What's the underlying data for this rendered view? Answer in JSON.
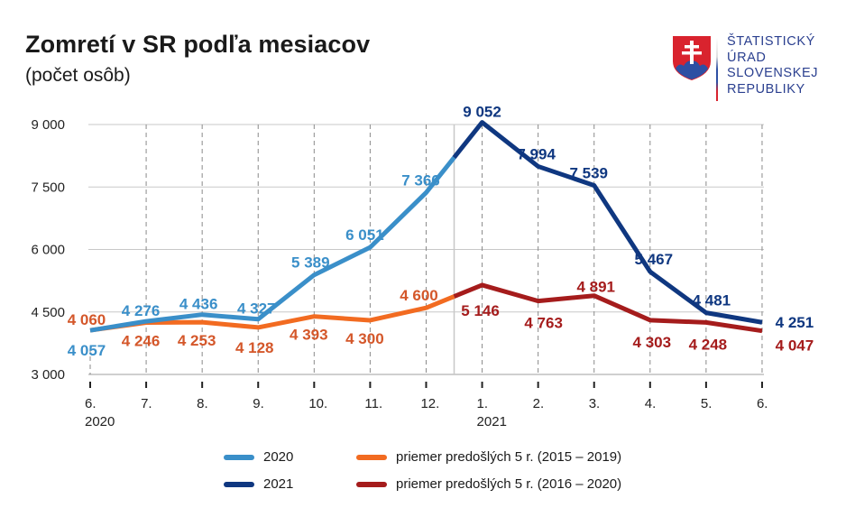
{
  "header": {
    "title": "Zomretí v SR podľa mesiacov",
    "subtitle": "(počet osôb)"
  },
  "logo": {
    "icon": "slovak-coat-of-arms-icon",
    "lines": [
      "ŠTATISTICKÝ",
      "ÚRAD",
      "SLOVENSKEJ",
      "REPUBLIKY"
    ],
    "text_color": "#2a3f8f"
  },
  "chart_data": {
    "type": "line",
    "title": "Zomretí v SR podľa mesiacov",
    "subtitle": "(počet osôb)",
    "xlabel": "",
    "ylabel": "",
    "ylim": [
      3000,
      9000
    ],
    "yticks": [
      3000,
      4500,
      6000,
      7500,
      9000
    ],
    "ytick_labels": [
      "3 000",
      "4 500",
      "6 000",
      "7 500",
      "9 000"
    ],
    "grid": true,
    "legend_position": "bottom",
    "categories": [
      "6.",
      "7.",
      "8.",
      "9.",
      "10.",
      "11.",
      "12.",
      "1.",
      "2.",
      "3.",
      "4.",
      "5.",
      "6."
    ],
    "year_labels": [
      {
        "index": 0,
        "label": "2020"
      },
      {
        "index": 7,
        "label": "2021"
      }
    ],
    "series": [
      {
        "name": "2020",
        "color": "#3a8fc9",
        "start_index": 0,
        "values": [
          4057,
          4276,
          4436,
          4327,
          5389,
          6051,
          7366
        ],
        "labels": [
          "4 057",
          "4 276",
          "4 436",
          "4 327",
          "5 389",
          "6 051",
          "7 366"
        ]
      },
      {
        "name": "2021",
        "color": "#0f3780",
        "start_index": 7,
        "values": [
          9052,
          7994,
          7539,
          5467,
          4481,
          4251
        ],
        "labels": [
          "9 052",
          "7 994",
          "7 539",
          "5 467",
          "4 481",
          "4 251"
        ]
      },
      {
        "name": "priemer predošlých 5 r. (2015 – 2019)",
        "color": "#f26b21",
        "label_color": "#d4572a",
        "start_index": 0,
        "values": [
          4060,
          4246,
          4253,
          4128,
          4393,
          4300,
          4600
        ],
        "labels": [
          "4 060",
          "4 246",
          "4 253",
          "4 128",
          "4 393",
          "4 300",
          "4 600"
        ]
      },
      {
        "name": "priemer predošlých 5 r. (2016 – 2020)",
        "color": "#a51c1c",
        "start_index": 7,
        "values": [
          5146,
          4763,
          4891,
          4303,
          4248,
          4047
        ],
        "labels": [
          "5 146",
          "4 763",
          "4 891",
          "4 303",
          "4 248",
          "4 047"
        ]
      }
    ]
  },
  "legend": [
    {
      "label": "2020",
      "color": "#3a8fc9"
    },
    {
      "label": "priemer predošlých 5 r. (2015 – 2019)",
      "color": "#f26b21"
    },
    {
      "label": "2021",
      "color": "#0f3780"
    },
    {
      "label": "priemer predošlých 5 r. (2016 – 2020)",
      "color": "#a51c1c"
    }
  ]
}
